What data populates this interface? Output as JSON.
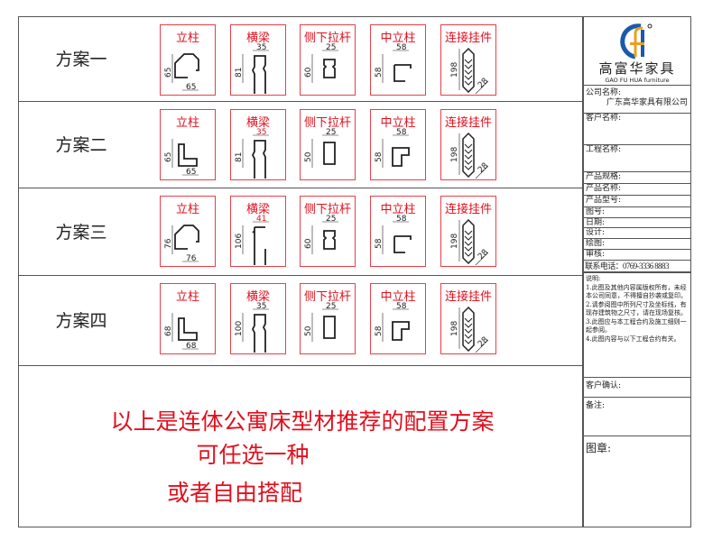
{
  "plans": [
    {
      "label": "方案一",
      "items": [
        {
          "name": "立柱",
          "shape": "post",
          "h": "65",
          "w": "65",
          "w_red": false
        },
        {
          "name": "横梁",
          "shape": "beam",
          "h": "81",
          "w": "35",
          "w_red": false
        },
        {
          "name": "侧下拉杆",
          "shape": "rod",
          "h": "60",
          "w": "25",
          "w_red": false
        },
        {
          "name": "中立柱",
          "shape": "mid",
          "h": "58",
          "w": "58",
          "w_red": false
        },
        {
          "name": "连接挂件",
          "shape": "hook",
          "h": "198",
          "w": "28",
          "w_red": false
        }
      ]
    },
    {
      "label": "方案二",
      "items": [
        {
          "name": "立柱",
          "shape": "post2",
          "h": "65",
          "w": "65",
          "w_red": false
        },
        {
          "name": "横梁",
          "shape": "beam",
          "h": "81",
          "w": "35",
          "w_red": true
        },
        {
          "name": "侧下拉杆",
          "shape": "rod2",
          "h": "50",
          "w": "25",
          "w_red": false
        },
        {
          "name": "中立柱",
          "shape": "mid2",
          "h": "58",
          "w": "58",
          "w_red": false
        },
        {
          "name": "连接挂件",
          "shape": "hook",
          "h": "198",
          "w": "28",
          "w_red": false
        }
      ]
    },
    {
      "label": "方案三",
      "items": [
        {
          "name": "立柱",
          "shape": "post",
          "h": "76",
          "w": "76",
          "w_red": false
        },
        {
          "name": "横梁",
          "shape": "beam3",
          "h": "106",
          "w": "41",
          "w_red": true
        },
        {
          "name": "侧下拉杆",
          "shape": "rod",
          "h": "60",
          "w": "25",
          "w_red": false
        },
        {
          "name": "中立柱",
          "shape": "mid",
          "h": "58",
          "w": "58",
          "w_red": false
        },
        {
          "name": "连接挂件",
          "shape": "hook",
          "h": "198",
          "w": "28",
          "w_red": false
        }
      ]
    },
    {
      "label": "方案四",
      "items": [
        {
          "name": "立柱",
          "shape": "post2",
          "h": "68",
          "w": "68",
          "w_red": false
        },
        {
          "name": "横梁",
          "shape": "beam",
          "h": "100",
          "w": "35",
          "w_red": false
        },
        {
          "name": "侧下拉杆",
          "shape": "rod2",
          "h": "50",
          "w": "25",
          "w_red": false
        },
        {
          "name": "中立柱",
          "shape": "mid2",
          "h": "58",
          "w": "58",
          "w_red": false
        },
        {
          "name": "连接挂件",
          "shape": "hook",
          "h": "198",
          "w": "28",
          "w_red": false
        }
      ]
    }
  ],
  "summary": {
    "line1": "以上是连体公寓床型材推荐的配置方案",
    "line2": "可任选一种",
    "line3": "或者自由搭配"
  },
  "panel": {
    "logo_cn": "高富华家具",
    "logo_en": "GAO FU HUA furniture",
    "company_label": "公司名称:",
    "company_value": "广东高华家具有限公司",
    "customer_label": "客户名称:",
    "project_label": "工程名称:",
    "spec_label": "产品规格:",
    "product_label": "产品名称:",
    "model_label": "产品型号:",
    "drawing_no_label": "图号:",
    "date_label": "日期:",
    "design_label": "设计:",
    "draw_label": "绘图:",
    "review_label": "审核:",
    "phone": "联系电话：0769-3336 8883",
    "notes": [
      "说明:",
      "1.此图及其他内容属版权所有，未经本公司同意，不得擅自抄袭或复印。",
      "2.请参阅图中所列尺寸及坐标线，有现存建筑物之尺寸，请在现场复核。",
      "3.此图应与本工程合约及施工细则一起参阅。",
      "4.此图内容与以下工程合约有关。"
    ],
    "confirm_label": "客户确认:",
    "remark_label": "备注:",
    "seal_label": "图章:"
  },
  "colors": {
    "accent": "#e0101e",
    "logo_blue": "#1a5aa8",
    "logo_orange": "#e8a020"
  }
}
